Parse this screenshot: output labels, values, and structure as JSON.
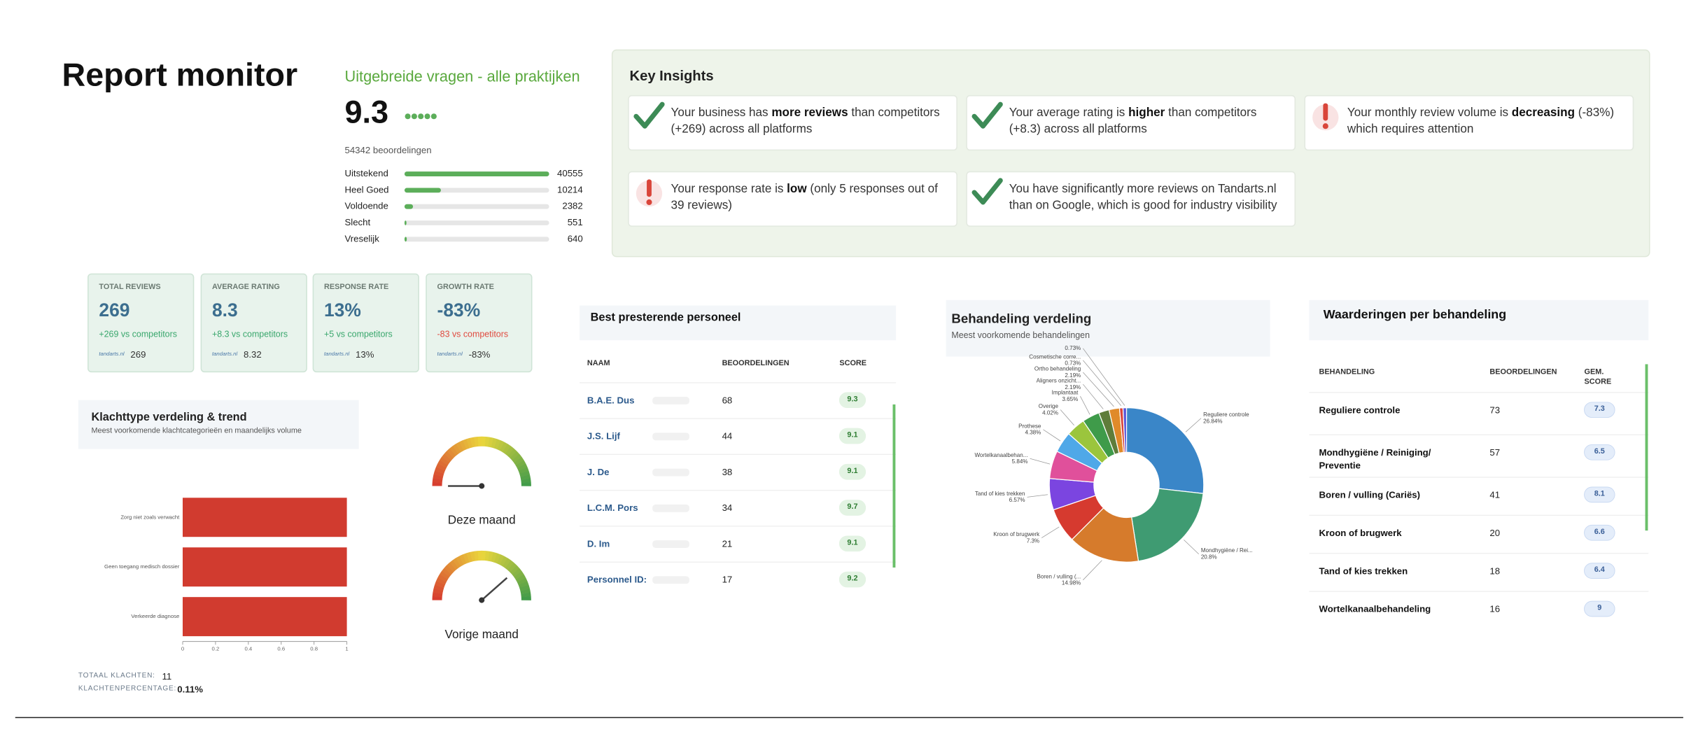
{
  "header": {
    "title": "Report monitor",
    "subtitle": "Uitgebreide vragen - alle praktijken",
    "score": "9.3",
    "count": "54342 beoordelingen"
  },
  "key_insights": {
    "title": "Key Insights",
    "items": [
      {
        "icon": "check",
        "parts": [
          "Your business has ",
          "more reviews",
          " than competitors (+269) across all platforms"
        ]
      },
      {
        "icon": "check",
        "parts": [
          "Your average rating is ",
          "higher",
          " than competitors (+8.3) across all platforms"
        ]
      },
      {
        "icon": "alert",
        "parts": [
          "Your monthly review volume is ",
          "decreasing",
          " (-83%) which requires attention"
        ]
      },
      {
        "icon": "alert",
        "parts": [
          "Your response rate is ",
          "low",
          " (only 5 responses out of 39 reviews)"
        ]
      },
      {
        "icon": "check",
        "parts": [
          "You have significantly more reviews on Tandarts.nl than on Google, which is good for industry visibility"
        ]
      }
    ]
  },
  "kpis": {
    "source_logo": "tandarts.nl",
    "cards": [
      {
        "label": "TOTAL REVIEWS",
        "value": "269",
        "delta": "+269 vs competitors",
        "trend": "up",
        "source_value": "269"
      },
      {
        "label": "AVERAGE RATING",
        "value": "8.3",
        "delta": "+8.3 vs competitors",
        "trend": "up",
        "source_value": "8.32"
      },
      {
        "label": "RESPONSE RATE",
        "value": "13%",
        "delta": "+5 vs competitors",
        "trend": "up",
        "source_value": "13%"
      },
      {
        "label": "GROWTH RATE",
        "value": "-83%",
        "delta": "-83 vs competitors",
        "trend": "down",
        "source_value": "-83%"
      }
    ]
  },
  "complaints_summary": {
    "total_label": "TOTAAL KLACHTEN:",
    "total": "11",
    "pct_label": "KLACHTENPERCENTAGE:",
    "pct": "0.11%"
  },
  "staff_table": {
    "title": "Best presterende personeel",
    "columns": [
      "NAAM",
      "BEOORDELINGEN",
      "SCORE"
    ],
    "rows": [
      [
        "B.A.E. Dus",
        "68",
        "9.3"
      ],
      [
        "J.S. Lijf",
        "44",
        "9.1"
      ],
      [
        "J. De",
        "38",
        "9.1"
      ],
      [
        "L.C.M. Pors",
        "34",
        "9.7"
      ],
      [
        "D. Im",
        "21",
        "9.1"
      ],
      [
        "Personnel ID:",
        "17",
        "9.2"
      ]
    ]
  },
  "treatment_table": {
    "title": "Waarderingen per behandeling",
    "columns": [
      "BEHANDELING",
      "BEOORDELINGEN",
      "GEM. SCORE"
    ],
    "rows": [
      [
        "Reguliere controle",
        "73",
        "7.3"
      ],
      [
        "Mondhygiëne / Reiniging/ Preventie",
        "57",
        "6.5"
      ],
      [
        "Boren / vulling (Cariës)",
        "41",
        "8.1"
      ],
      [
        "Kroon of brugwerk",
        "20",
        "6.6"
      ],
      [
        "Tand of kies trekken",
        "18",
        "6.4"
      ],
      [
        "Wortelkanaalbehandeling",
        "16",
        "9"
      ]
    ]
  },
  "chart_data": [
    {
      "type": "bar",
      "orientation": "horizontal",
      "categories": [
        "Uitstekend",
        "Heel Goed",
        "Voldoende",
        "Slecht",
        "Vreselijk"
      ],
      "values": [
        40555,
        10214,
        2382,
        551,
        640
      ],
      "color": "#5cae5a",
      "xlim": [
        0,
        40555
      ]
    },
    {
      "type": "bar",
      "orientation": "horizontal",
      "title": "Klachttype verdeling & trend",
      "subtitle": "Meest voorkomende klachtcategorieën en maandelijks volume",
      "categories": [
        "Zorg niet zoals verwacht",
        "Geen toegang medisch dossier",
        "Verkeerde diagnose"
      ],
      "values": [
        1,
        1,
        1
      ],
      "color": "#d13b2f",
      "xlim": [
        0,
        1
      ],
      "xticks": [
        0,
        0.2,
        0.4,
        0.6,
        0.8,
        1
      ]
    },
    {
      "type": "gauge",
      "categories": [
        "Deze maand",
        "Vorige maand"
      ],
      "values": [
        0,
        0.77
      ],
      "ylim": [
        0,
        1
      ]
    },
    {
      "type": "pie",
      "donut": true,
      "title": "Behandeling verdeling",
      "subtitle": "Meest voorkomende behandelingen",
      "categories": [
        "Reguliere controle",
        "Mondhygiëne / Rei...",
        "Boren / vulling (...",
        "Kroon of brugwerk",
        "Tand of kies trekken",
        "Wortelkanaalbehan...",
        "Prothese",
        "Overige",
        "Implantaat",
        "Aligners onzicht...",
        "Ortho behandeling",
        "Cosmetische corre...",
        null
      ],
      "values": [
        26.84,
        20.8,
        14.98,
        7.3,
        6.57,
        5.84,
        4.38,
        4.02,
        3.65,
        2.19,
        2.19,
        0.73,
        0.73
      ],
      "value_labels": [
        "26.84%",
        "20.8%",
        "14.98%",
        "7.3%",
        "6.57%",
        "5.84%",
        "4.38%",
        "4.02%",
        "3.65%",
        "2.19%",
        "2.19%",
        "0.73%",
        "0.73%"
      ],
      "colors": [
        "#3a86c8",
        "#3f9b72",
        "#d67b2c",
        "#d63a2f",
        "#7b45e0",
        "#e0509b",
        "#4fa8e8",
        "#9bc53d",
        "#3f9b4a",
        "#5f7d3a",
        "#e08a2a",
        "#d9453a",
        "#5a55d8"
      ]
    }
  ]
}
